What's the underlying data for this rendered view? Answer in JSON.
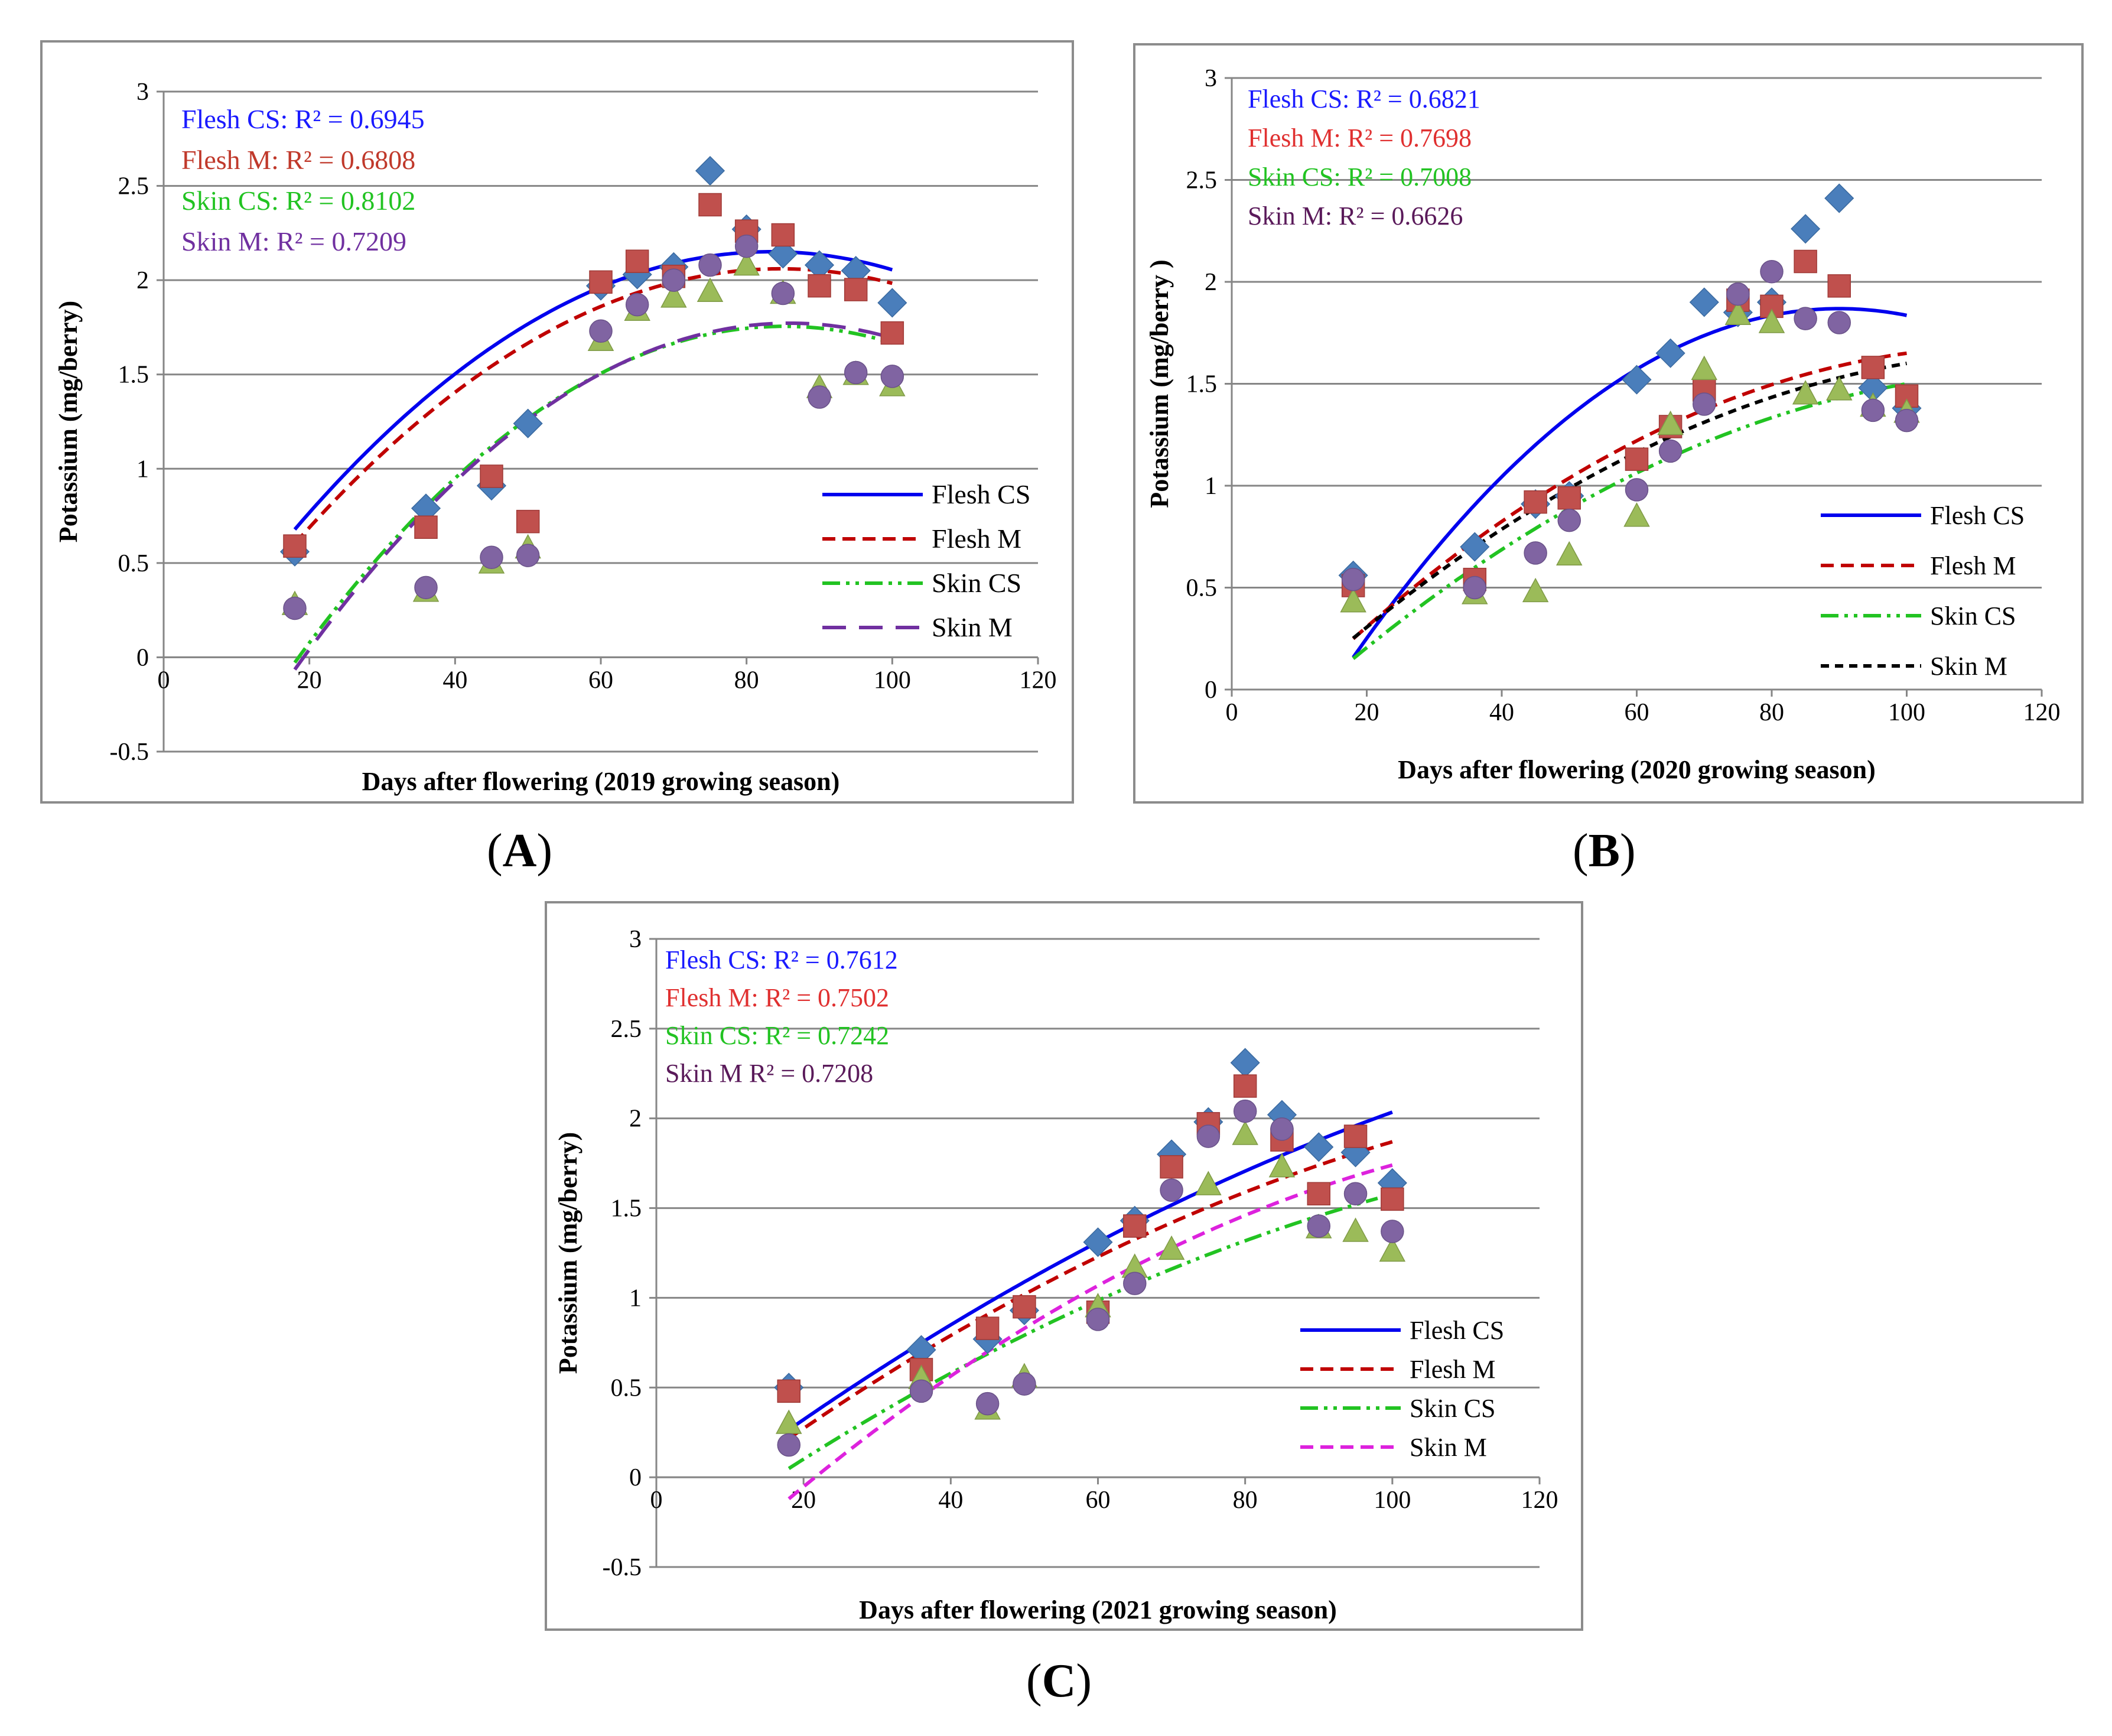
{
  "chart_data": [
    {
      "type": "scatter",
      "panel": "A",
      "caption": "A",
      "xlabel": "Days after flowering (2019 growing  season)",
      "ylabel": "Potassium (mg/berry)",
      "xlim": [
        0,
        120
      ],
      "ylim": [
        -0.5,
        3
      ],
      "xticks": [
        0,
        20,
        40,
        60,
        80,
        100,
        120
      ],
      "yticks": [
        -0.5,
        0,
        0.5,
        1,
        1.5,
        2,
        2.5,
        3
      ],
      "xtick_labels": [
        "0",
        "20",
        "40",
        "60",
        "80",
        "100",
        "120"
      ],
      "ytick_labels": [
        "-0.5",
        "0",
        "0.5",
        "1",
        "1.5",
        "2",
        "2.5",
        "3"
      ],
      "r2_labels": [
        {
          "text": "Flesh CS: R² = 0.6945",
          "color": "#1a1aff"
        },
        {
          "text": "Flesh M: R² = 0.6808",
          "color": "#c0392b"
        },
        {
          "text": "Skin CS: R² = 0.8102",
          "color": "#22c322"
        },
        {
          "text": "Skin M:  R² = 0.7209",
          "color": "#7030a0"
        }
      ],
      "legend_labels": [
        "Flesh CS",
        "Flesh M",
        "Skin CS",
        "Skin M"
      ],
      "series": [
        {
          "name": "Flesh CS",
          "marker": "diamond",
          "color": "#4a7ebb",
          "x": [
            18,
            36,
            45,
            50,
            60,
            65,
            70,
            75,
            80,
            85,
            90,
            95,
            100
          ],
          "y": [
            0.56,
            0.79,
            0.91,
            1.24,
            1.97,
            2.03,
            2.07,
            2.58,
            2.27,
            2.14,
            2.08,
            2.05,
            1.88
          ],
          "trend": {
            "coef": [
              -0.000345,
              0.0575,
              -0.245
            ],
            "range": [
              18,
              100
            ],
            "color": "#0000ee",
            "dash": "solid"
          }
        },
        {
          "name": "Flesh M",
          "marker": "square",
          "color": "#c0504d",
          "x": [
            18,
            36,
            45,
            50,
            60,
            65,
            70,
            75,
            80,
            85,
            90,
            95,
            100
          ],
          "y": [
            0.59,
            0.69,
            0.96,
            0.72,
            1.99,
            2.1,
            2.02,
            2.4,
            2.26,
            2.24,
            1.97,
            1.95,
            1.72
          ],
          "trend": {
            "coef": [
              -0.000328,
              0.05555,
              -0.2917
            ],
            "range": [
              18,
              100
            ],
            "color": "#c00000",
            "dash": "dash"
          }
        },
        {
          "name": "Skin CS",
          "marker": "triangle",
          "color": "#9bbb59",
          "x": [
            18,
            36,
            45,
            50,
            60,
            65,
            70,
            75,
            80,
            85,
            90,
            95,
            100
          ],
          "y": [
            0.28,
            0.35,
            0.5,
            0.58,
            1.68,
            1.84,
            1.91,
            1.94,
            2.08,
            1.93,
            1.43,
            1.5,
            1.44
          ],
          "trend": {
            "coef": [
              -0.000396,
              0.0674,
              -1.1128
            ],
            "range": [
              18,
              100
            ],
            "color": "#22c322",
            "dash": "dashdotdot"
          }
        },
        {
          "name": "Skin M",
          "marker": "circle",
          "color": "#8064a2",
          "x": [
            18,
            36,
            45,
            50,
            60,
            65,
            70,
            75,
            80,
            85,
            90,
            95,
            100
          ],
          "y": [
            0.26,
            0.37,
            0.53,
            0.54,
            1.73,
            1.87,
            2.0,
            2.08,
            2.18,
            1.93,
            1.38,
            1.51,
            1.49
          ],
          "trend": {
            "coef": [
              -0.000398,
              0.0684,
              -1.167
            ],
            "range": [
              18,
              100
            ],
            "color": "#7030a0",
            "dash": "longdash"
          }
        }
      ]
    },
    {
      "type": "scatter",
      "panel": "B",
      "caption": "B",
      "xlabel": "Days after flowering (2020 growing season)",
      "ylabel": "Potassium (mg/berry )",
      "xlim": [
        0,
        120
      ],
      "ylim": [
        0,
        3
      ],
      "xticks": [
        0,
        20,
        40,
        60,
        80,
        100,
        120
      ],
      "yticks": [
        0,
        0.5,
        1,
        1.5,
        2,
        2.5,
        3
      ],
      "xtick_labels": [
        "0",
        "20",
        "40",
        "60",
        "80",
        "100",
        "120"
      ],
      "ytick_labels": [
        "0",
        "0.5",
        "1",
        "1.5",
        "2",
        "2.5",
        "3"
      ],
      "r2_labels": [
        {
          "text": "Flesh CS: R² = 0.6821",
          "color": "#1a1aff"
        },
        {
          "text": "Flesh M:  R² = 0.7698",
          "color": "#e03030"
        },
        {
          "text": "Skin  CS: R² = 0.7008",
          "color": "#22c322"
        },
        {
          "text": "Skin M: R² = 0.6626",
          "color": "#5a1a5a"
        }
      ],
      "legend_labels": [
        "Flesh CS",
        "Flesh M",
        "Skin CS",
        "Skin M"
      ],
      "series": [
        {
          "name": "Flesh CS",
          "marker": "diamond",
          "color": "#4a7ebb",
          "x": [
            18,
            36,
            45,
            50,
            60,
            65,
            70,
            75,
            80,
            85,
            90,
            95,
            100
          ],
          "y": [
            0.56,
            0.7,
            0.91,
            0.95,
            1.52,
            1.65,
            1.9,
            1.85,
            1.9,
            2.26,
            2.41,
            1.48,
            1.38
          ],
          "trend": {
            "coef": [
              -0.00033,
              0.0594,
              -0.8045
            ],
            "range": [
              18,
              100
            ],
            "color": "#0000ee",
            "dash": "solid"
          }
        },
        {
          "name": "Flesh M",
          "marker": "square",
          "color": "#c0504d",
          "x": [
            18,
            36,
            45,
            50,
            60,
            65,
            70,
            75,
            80,
            85,
            90,
            95,
            100
          ],
          "y": [
            0.51,
            0.54,
            0.92,
            0.94,
            1.13,
            1.29,
            1.47,
            1.91,
            1.88,
            2.1,
            1.98,
            1.58,
            1.44
          ],
          "trend": {
            "coef": [
              -0.000151,
              0.0349,
              -0.33
            ],
            "range": [
              18,
              100
            ],
            "color": "#c00000",
            "dash": "dash"
          }
        },
        {
          "name": "Skin CS",
          "marker": "triangle",
          "color": "#9bbb59",
          "x": [
            18,
            36,
            45,
            50,
            60,
            65,
            70,
            75,
            80,
            85,
            90,
            95,
            100
          ],
          "y": [
            0.43,
            0.47,
            0.48,
            0.66,
            0.85,
            1.3,
            1.57,
            1.84,
            1.8,
            1.45,
            1.47,
            1.39,
            1.36
          ],
          "trend": {
            "coef": [
              -0.000131,
              0.0319,
              -0.38
            ],
            "range": [
              18,
              100
            ],
            "color": "#22c322",
            "dash": "dashdotdot"
          }
        },
        {
          "name": "Skin M",
          "marker": "circle",
          "color": "#8064a2",
          "x": [
            18,
            36,
            45,
            50,
            60,
            65,
            70,
            75,
            80,
            85,
            90,
            95,
            100
          ],
          "y": [
            0.54,
            0.5,
            0.67,
            0.83,
            0.98,
            1.17,
            1.4,
            1.94,
            2.05,
            1.82,
            1.8,
            1.37,
            1.32
          ],
          "trend": {
            "coef": [
              -0.000131,
              0.0319,
              -0.28
            ],
            "range": [
              18,
              100
            ],
            "color": "#000000",
            "dash": "shortdash"
          }
        }
      ]
    },
    {
      "type": "scatter",
      "panel": "C",
      "caption": "C",
      "xlabel": "Days after flowering  (2021 growing season)",
      "ylabel": "Potassium (mg/berry)",
      "xlim": [
        0,
        120
      ],
      "ylim": [
        -0.5,
        3
      ],
      "xticks": [
        0,
        20,
        40,
        60,
        80,
        100,
        120
      ],
      "yticks": [
        -0.5,
        0,
        0.5,
        1,
        1.5,
        2,
        2.5,
        3
      ],
      "xtick_labels": [
        "0",
        "20",
        "40",
        "60",
        "80",
        "100",
        "120"
      ],
      "ytick_labels": [
        "-0.5",
        "0",
        "0.5",
        "1",
        "1.5",
        "2",
        "2.5",
        "3"
      ],
      "r2_labels": [
        {
          "text": "Flesh CS: R² = 0.7612",
          "color": "#1a1aff"
        },
        {
          "text": "Flesh M: R² = 0.7502",
          "color": "#e03030"
        },
        {
          "text": "Skin CS: R² = 0.7242",
          "color": "#22c322"
        },
        {
          "text": "Skin  M  R² = 0.7208",
          "color": "#5a1a5a"
        }
      ],
      "legend_labels": [
        "Flesh CS",
        "Flesh M",
        "Skin CS",
        "Skin M"
      ],
      "series": [
        {
          "name": "Flesh CS",
          "marker": "diamond",
          "color": "#4a7ebb",
          "x": [
            18,
            36,
            45,
            50,
            60,
            65,
            70,
            75,
            80,
            85,
            90,
            95,
            100
          ],
          "y": [
            0.5,
            0.71,
            0.77,
            0.93,
            1.31,
            1.43,
            1.8,
            1.98,
            2.31,
            2.02,
            1.84,
            1.81,
            1.64
          ],
          "trend": {
            "coef": [
              -8.32e-05,
              0.0314,
              -0.2735
            ],
            "range": [
              18,
              100
            ],
            "color": "#0000ee",
            "dash": "solid"
          }
        },
        {
          "name": "Flesh M",
          "marker": "square",
          "color": "#c0504d",
          "x": [
            18,
            36,
            45,
            50,
            60,
            65,
            70,
            75,
            80,
            85,
            90,
            95,
            100
          ],
          "y": [
            0.48,
            0.6,
            0.83,
            0.95,
            0.92,
            1.4,
            1.73,
            1.97,
            2.18,
            1.88,
            1.58,
            1.9,
            1.55
          ],
          "trend": {
            "coef": [
              -9.86e-05,
              0.0318,
              -0.3244
            ],
            "range": [
              18,
              100
            ],
            "color": "#c00000",
            "dash": "dash"
          }
        },
        {
          "name": "Skin CS",
          "marker": "triangle",
          "color": "#9bbb59",
          "x": [
            18,
            36,
            45,
            50,
            60,
            65,
            70,
            75,
            80,
            85,
            90,
            95,
            100
          ],
          "y": [
            0.3,
            0.55,
            0.38,
            0.56,
            0.95,
            1.17,
            1.27,
            1.63,
            1.91,
            1.73,
            1.39,
            1.37,
            1.26
          ],
          "trend": {
            "coef": [
              -9.12e-05,
              0.0294,
              -0.4507
            ],
            "range": [
              18,
              98
            ],
            "color": "#22c322",
            "dash": "dashdotdot"
          }
        },
        {
          "name": "Skin M",
          "marker": "circle",
          "color": "#8064a2",
          "x": [
            18,
            36,
            45,
            50,
            60,
            65,
            70,
            75,
            80,
            85,
            90,
            95,
            100
          ],
          "y": [
            0.18,
            0.48,
            0.41,
            0.52,
            0.88,
            1.08,
            1.6,
            1.9,
            2.04,
            1.94,
            1.4,
            1.58,
            1.37
          ],
          "trend": {
            "coef": [
              -0.00014,
              0.0392,
              -0.7804
            ],
            "range": [
              18,
              100
            ],
            "color": "#dd22dd",
            "dash": "dash"
          }
        }
      ]
    }
  ]
}
